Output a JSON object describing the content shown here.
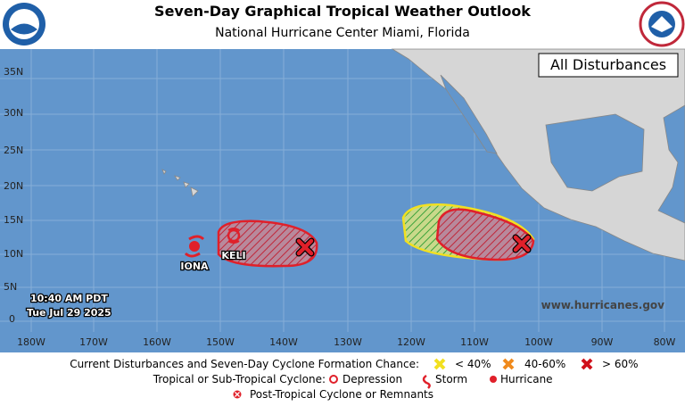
{
  "header": {
    "title": "Seven-Day Graphical Tropical Weather Outlook",
    "subtitle": "National Hurricane Center  Miami, Florida"
  },
  "map": {
    "panel_label": "All Disturbances",
    "latitude_labels": [
      "35N",
      "30N",
      "25N",
      "20N",
      "15N",
      "10N",
      "5N",
      "0"
    ],
    "longitude_labels": [
      "180W",
      "170W",
      "160W",
      "150W",
      "140W",
      "130W",
      "120W",
      "110W",
      "100W",
      "90W",
      "80W"
    ],
    "timestamp": [
      "10:40 AM PDT",
      "Tue Jul 29 2025"
    ],
    "website": "www.hurricanes.gov",
    "storms": [
      "IONA",
      "KELI"
    ]
  },
  "legend": {
    "disturbances_label": "Current Disturbances and Seven-Day Cyclone Formation Chance:",
    "chances": [
      "< 40%",
      "40-60%",
      "> 60%"
    ],
    "cyclone_label": "Tropical or Sub-Tropical Cyclone:",
    "cyclone_types": [
      "Depression",
      "Storm",
      "Hurricane"
    ],
    "post_tropical": "Post-Tropical Cyclone or Remnants"
  }
}
